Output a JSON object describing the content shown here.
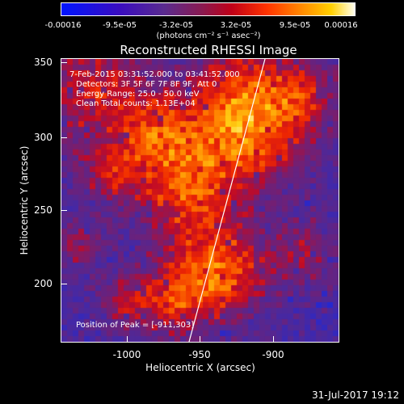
{
  "colorbar": {
    "ticks": [
      "-0.00016",
      "-9.5e-05",
      "-3.2e-05",
      "3.2e-05",
      "9.5e-05",
      "0.00016"
    ],
    "unit": "(photons cm⁻² s⁻¹ asec⁻²)"
  },
  "title": "Reconstructed RHESSI Image",
  "annotations": {
    "time_range": "7-Feb-2015 03:31:52.000 to 03:41:52.000",
    "detectors": "Detectors: 3F 5F 6F 7F 8F 9F, Att 0",
    "energy": "Energy Range: 25.0 - 50.0 keV",
    "clean": "Clean    Total counts: 1.13E+04",
    "peak": "Position of Peak = [-911,303]"
  },
  "axes": {
    "xlabel": "Heliocentric X (arcsec)",
    "ylabel": "Heliocentric Y (arcsec)",
    "xticks": [
      "-1000",
      "-950",
      "-900"
    ],
    "yticks": [
      "350",
      "300",
      "250",
      "200"
    ]
  },
  "footer": "31-Jul-2017 19:12"
}
